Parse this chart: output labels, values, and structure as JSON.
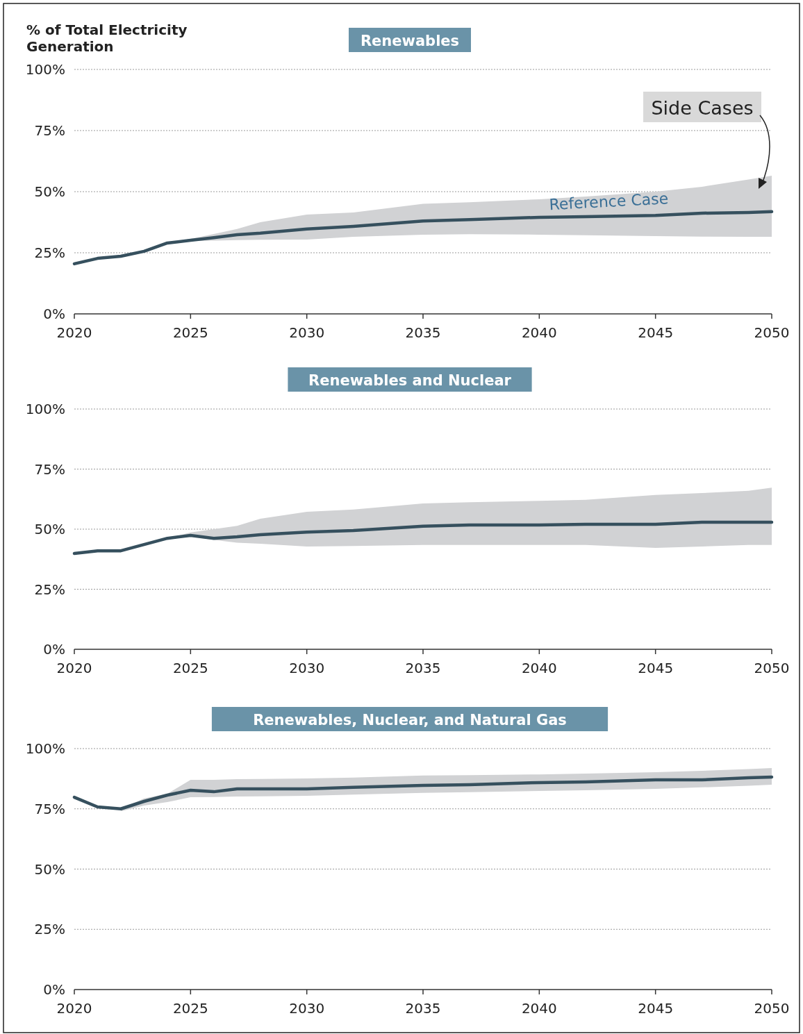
{
  "chart_data": [
    {
      "type": "line",
      "title": "Renewables",
      "ylabel": "% of Total Electricity Generation",
      "x": [
        2020,
        2021,
        2022,
        2023,
        2024,
        2025,
        2026,
        2027,
        2028,
        2030,
        2032,
        2035,
        2037,
        2040,
        2042,
        2045,
        2047,
        2049,
        2050
      ],
      "series": [
        {
          "color": "#36505e",
          "values": [
            20.5,
            22.7,
            23.6,
            25.6,
            29,
            30.1,
            31.2,
            32.4,
            33,
            34.7,
            35.8,
            38,
            38.6,
            39.5,
            39.8,
            40.3,
            41.2,
            41.5,
            41.8
          ],
          "lower": [
            null,
            null,
            null,
            null,
            29,
            29.8,
            30,
            30.2,
            30.3,
            30.4,
            31.5,
            32.4,
            32.6,
            32.4,
            32.2,
            31.8,
            31.6,
            31.5,
            31.5
          ],
          "upper": [
            null,
            null,
            null,
            null,
            29,
            30.7,
            32.7,
            34.7,
            37.5,
            40.6,
            41.5,
            45,
            45.7,
            46.9,
            48,
            50,
            52,
            55,
            56.5
          ]
        }
      ],
      "xlim": [
        2020,
        2050
      ],
      "xticks": [
        2020,
        2025,
        2030,
        2035,
        2040,
        2045,
        2050
      ],
      "ylim": [
        0,
        100
      ],
      "yticks": [
        {
          "value": 0,
          "label": "0%"
        },
        {
          "value": 25,
          "label": "25%"
        },
        {
          "value": 50,
          "label": "50%"
        },
        {
          "value": 75,
          "label": "75%"
        },
        {
          "value": 100,
          "label": "100%"
        }
      ],
      "grid": "y",
      "marker": "none",
      "line_style": "solid",
      "annotations": [
        "Side Cases",
        {
          "text": "Reference Case",
          "x": 2043,
          "y": 41
        }
      ]
    },
    {
      "type": "line",
      "title": "Renewables and Nuclear",
      "x": [
        2020,
        2021,
        2022,
        2023,
        2024,
        2025,
        2026,
        2027,
        2028,
        2030,
        2032,
        2035,
        2037,
        2040,
        2042,
        2045,
        2047,
        2049,
        2050
      ],
      "series": [
        {
          "color": "#36505e",
          "values": [
            39.9,
            41,
            41,
            43.6,
            46.2,
            47.4,
            46.2,
            46.8,
            47.7,
            48.8,
            49.4,
            51.2,
            51.7,
            51.7,
            52,
            52,
            52.9,
            52.9,
            52.9
          ],
          "lower": [
            null,
            null,
            null,
            null,
            46.2,
            47,
            45.5,
            44.4,
            43.9,
            42.8,
            43,
            43.4,
            43.4,
            43.4,
            43.4,
            42.2,
            42.8,
            43.4,
            43.4
          ],
          "upper": [
            null,
            null,
            null,
            null,
            46.2,
            48.6,
            50,
            51.4,
            54.3,
            57.2,
            58.2,
            60.7,
            61.2,
            61.8,
            62.2,
            64.2,
            65,
            66,
            67.3
          ]
        }
      ],
      "xlim": [
        2020,
        2050
      ],
      "xticks": [
        2020,
        2025,
        2030,
        2035,
        2040,
        2045,
        2050
      ],
      "ylim": [
        0,
        100
      ],
      "yticks": [
        {
          "value": 0,
          "label": "0%"
        },
        {
          "value": 25,
          "label": "25%"
        },
        {
          "value": 50,
          "label": "50%"
        },
        {
          "value": 75,
          "label": "75%"
        },
        {
          "value": 100,
          "label": "100%"
        }
      ],
      "grid": "y",
      "marker": "none",
      "line_style": "solid"
    },
    {
      "type": "line",
      "title": "Renewables,  Nuclear, and Natural Gas",
      "x": [
        2020,
        2021,
        2022,
        2023,
        2024,
        2025,
        2026,
        2027,
        2028,
        2030,
        2032,
        2035,
        2037,
        2040,
        2042,
        2045,
        2047,
        2049,
        2050
      ],
      "series": [
        {
          "color": "#36505e",
          "values": [
            79.8,
            75.8,
            75,
            78.1,
            80.7,
            82.7,
            82.1,
            83.3,
            83.3,
            83.3,
            83.9,
            84.7,
            85,
            85.9,
            86.2,
            87,
            87,
            87.9,
            88.2
          ],
          "lower": [
            null,
            null,
            74,
            76.4,
            77.8,
            79.8,
            79.9,
            80.1,
            80.2,
            80.4,
            80.9,
            81.6,
            81.9,
            82.4,
            82.7,
            83.3,
            83.9,
            84.6,
            85
          ],
          "upper": [
            null,
            null,
            75,
            79.3,
            81.3,
            87,
            87,
            87.3,
            87.4,
            87.6,
            88,
            88.8,
            89,
            89.3,
            89.6,
            90.2,
            90.8,
            91.5,
            91.9
          ]
        }
      ],
      "xlim": [
        2020,
        2050
      ],
      "xticks": [
        2020,
        2025,
        2030,
        2035,
        2040,
        2045,
        2050
      ],
      "ylim": [
        0,
        100
      ],
      "yticks": [
        {
          "value": 0,
          "label": "0%"
        },
        {
          "value": 25,
          "label": "25%"
        },
        {
          "value": 50,
          "label": "50%"
        },
        {
          "value": 75,
          "label": "75%"
        },
        {
          "value": 100,
          "label": "100%"
        }
      ],
      "grid": "y",
      "marker": "none",
      "line_style": "solid"
    }
  ]
}
